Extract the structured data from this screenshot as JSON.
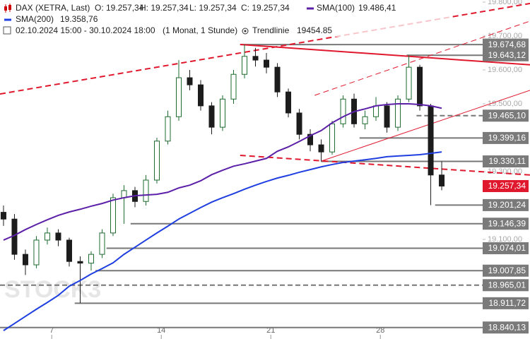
{
  "chart_data": {
    "type": "candlestick",
    "title": "DAX (XETRA, Last)",
    "ohlc_labels": [
      "O: 19.257,34",
      "H: 19.257,34",
      "L: 19.257,34",
      "C: 19.257,34"
    ],
    "period": "02.10.2024 15:00 - 30.10.2024 18:00",
    "resolution": "(1 Monat, 1 Stunde)",
    "trendline_label": "Trendlinie",
    "trendline_value": "19454.85",
    "watermark": "STOCK3",
    "up_color": "#1d6b2e",
    "down_color": "#1c1c1c",
    "x": [
      0,
      1,
      2,
      3,
      4,
      5,
      6,
      7,
      8,
      9,
      10,
      11,
      12,
      13,
      14,
      15,
      16,
      17,
      18,
      19,
      20,
      21,
      22,
      23,
      24,
      25,
      26,
      27,
      28,
      29,
      30,
      31,
      32,
      33,
      34,
      35,
      36,
      37,
      38,
      39,
      40
    ],
    "open": [
      19180,
      19160,
      19056,
      19025,
      19098,
      19119,
      19098,
      19035,
      19030,
      19056,
      19119,
      19223,
      19244,
      19212,
      19275,
      19390,
      19462,
      19577,
      19556,
      19494,
      19431,
      19514,
      19587,
      19640,
      19629,
      19608,
      19535,
      19473,
      19410,
      19379,
      19358,
      19441,
      19514,
      19441,
      19462,
      19494,
      19431,
      19514,
      19608,
      19494,
      19290
    ],
    "high": [
      19200,
      19175,
      19070,
      19110,
      19135,
      19130,
      19105,
      19050,
      19065,
      19130,
      19235,
      19260,
      19255,
      19290,
      19400,
      19480,
      19629,
      19600,
      19570,
      19505,
      19525,
      19600,
      19675,
      19665,
      19650,
      19620,
      19545,
      19485,
      19425,
      19395,
      19450,
      19525,
      19530,
      19480,
      19520,
      19505,
      19525,
      19643,
      19615,
      19500,
      19330
    ],
    "low": [
      19140,
      19040,
      18995,
      19015,
      19085,
      19080,
      19020,
      18912,
      19008,
      19045,
      19110,
      19146,
      19195,
      19200,
      19265,
      19380,
      19450,
      19540,
      19480,
      19410,
      19420,
      19500,
      19575,
      19610,
      19590,
      19520,
      19460,
      19395,
      19360,
      19330,
      19350,
      19430,
      19430,
      19425,
      19450,
      19415,
      19420,
      19505,
      19480,
      19201,
      19245
    ],
    "close": [
      19160,
      19056,
      19025,
      19098,
      19119,
      19098,
      19035,
      19030,
      19056,
      19119,
      19223,
      19244,
      19212,
      19275,
      19390,
      19462,
      19577,
      19556,
      19494,
      19431,
      19514,
      19587,
      19640,
      19629,
      19608,
      19535,
      19473,
      19410,
      19379,
      19358,
      19441,
      19514,
      19441,
      19462,
      19494,
      19431,
      19514,
      19608,
      19494,
      19290,
      19257.34
    ],
    "series": [
      {
        "name": "SMA(100)",
        "legend_value": "19.486,41",
        "color": "#5b1fa8",
        "values": [
          19098,
          19112,
          19129,
          19144,
          19158,
          19171,
          19181,
          19189,
          19198,
          19206,
          19216,
          19223,
          19229,
          19231,
          19233,
          19239,
          19252,
          19260,
          19273,
          19291,
          19304,
          19316,
          19323,
          19331,
          19339,
          19360,
          19373,
          19389,
          19406,
          19421,
          19444,
          19462,
          19477,
          19485,
          19494,
          19498,
          19500,
          19500,
          19498,
          19494,
          19487
        ]
      },
      {
        "name": "SMA(200)",
        "legend_value": "19.358,76",
        "color": "#1f3fe0",
        "values": [
          18831,
          18852,
          18873,
          18894,
          18914,
          18935,
          18962,
          18979,
          18998,
          19014,
          19031,
          19056,
          19077,
          19098,
          19119,
          19139,
          19160,
          19177,
          19194,
          19210,
          19223,
          19235,
          19248,
          19260,
          19271,
          19281,
          19289,
          19298,
          19306,
          19314,
          19321,
          19327,
          19331,
          19335,
          19339,
          19344,
          19346,
          19348,
          19350,
          19354,
          19358
        ]
      }
    ],
    "trendlines": [
      {
        "x": [
          -0.32,
          48.06
        ],
        "y": [
          19529,
          19796
        ],
        "color": "#e0182d",
        "dashed": true,
        "width": 2
      },
      {
        "x": [
          21.6,
          48.06
        ],
        "y": [
          19675,
          19615
        ],
        "color": "#e0182d",
        "dashed": false,
        "width": 2
      },
      {
        "x": [
          21.6,
          48.06
        ],
        "y": [
          19348,
          19290
        ],
        "color": "#e0182d",
        "dashed": true,
        "width": 2
      },
      {
        "x": [
          28.4,
          48.06
        ],
        "y": [
          19525,
          19744
        ],
        "color": "#e0182d",
        "dashed": true,
        "width": 1
      },
      {
        "x": [
          29,
          48.06
        ],
        "y": [
          19331,
          19540
        ],
        "color": "#e0182d",
        "dashed": false,
        "width": 1
      }
    ],
    "levels": [
      {
        "value": 19674.68,
        "label": "19.674,68",
        "start": 21.6,
        "dashed": false,
        "color": "#777777"
      },
      {
        "value": 19643.12,
        "label": "19.643,12",
        "start": 36.8,
        "dashed": false,
        "color": "#777777"
      },
      {
        "value": 19465.1,
        "label": "19.465,10",
        "start": 37.7,
        "dashed": true,
        "color": "#777777"
      },
      {
        "value": 19399.16,
        "label": "19.399,16",
        "start": 32.5,
        "dashed": false,
        "color": "#777777"
      },
      {
        "value": 19330.11,
        "label": "19.330,11",
        "start": 29,
        "dashed": false,
        "color": "#777777"
      },
      {
        "value": 19257.34,
        "label": "19.257,34",
        "start": 48.06,
        "dashed": false,
        "color": "#e0182d"
      },
      {
        "value": 19201.24,
        "label": "19.201,24",
        "start": 39.4,
        "dashed": false,
        "color": "#777777"
      },
      {
        "value": 19146.39,
        "label": "19.146,39",
        "start": 11.6,
        "dashed": false,
        "color": "#777777"
      },
      {
        "value": 19074.01,
        "label": "19.074,01",
        "start": 9.4,
        "dashed": false,
        "color": "#777777"
      },
      {
        "value": 19007.85,
        "label": "19.007,85",
        "start": 8.4,
        "dashed": false,
        "color": "#777777"
      },
      {
        "value": 18965.01,
        "label": "18.965,01",
        "start": -0.32,
        "dashed": true,
        "color": "#777777"
      },
      {
        "value": 18911.72,
        "label": "18.911,72",
        "start": 6.5,
        "dashed": false,
        "color": "#777777"
      },
      {
        "value": 18840.13,
        "label": "18.840,13",
        "start": -0.32,
        "dashed": false,
        "color": "#777777"
      }
    ],
    "xlim": [
      -0.32,
      48.06
    ],
    "ylim": [
      18806.25,
      19806.25
    ],
    "xticks": [
      {
        "value": 4.4,
        "label": "7"
      },
      {
        "value": 14.4,
        "label": "14"
      },
      {
        "value": 24.4,
        "label": "21"
      },
      {
        "value": 34.4,
        "label": "28"
      }
    ],
    "yticks": [
      {
        "value": 19800,
        "label": "19.800,00"
      },
      {
        "value": 19700,
        "label": "19.700,00"
      },
      {
        "value": 19600,
        "label": "19.600,00"
      },
      {
        "value": 19500,
        "label": "19.500,00"
      },
      {
        "value": 19300,
        "label": "19.300,00"
      },
      {
        "value": 19100,
        "label": "19.100,00"
      }
    ]
  }
}
